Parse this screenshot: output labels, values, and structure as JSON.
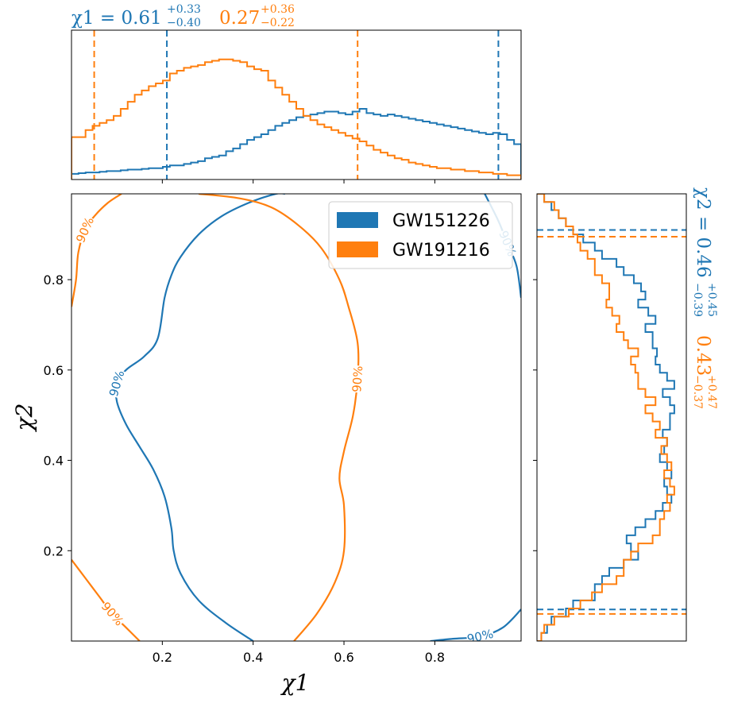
{
  "colors": {
    "blue": "#1f77b4",
    "orange": "#ff7f0e"
  },
  "labels": {
    "x_axis": "χ1",
    "y_axis": "χ2",
    "contour_label": "90%"
  },
  "legend": {
    "placement": "upper right",
    "items": [
      "GW151226",
      "GW191216"
    ]
  },
  "annotations": {
    "top": {
      "symbol": "χ1",
      "eq": "=",
      "blue": {
        "median": "0.61",
        "plus": "+0.33",
        "minus": "−0.40"
      },
      "orange": {
        "median": "0.27",
        "plus": "+0.36",
        "minus": "−0.22"
      }
    },
    "right": {
      "symbol": "χ2",
      "eq": "=",
      "blue": {
        "median": "0.46",
        "plus": "+0.45",
        "minus": "−0.39"
      },
      "orange": {
        "median": "0.43",
        "plus": "+0.47",
        "minus": "−0.37"
      }
    }
  },
  "chart_data": [
    {
      "type": "line",
      "panel": "joint 90% credible contours",
      "xlabel": "χ1",
      "ylabel": "χ2",
      "xlim": [
        0,
        0.99
      ],
      "ylim": [
        0,
        0.99
      ],
      "xticks": [
        "0.2",
        "0.4",
        "0.6",
        "0.8"
      ],
      "yticks": [
        "0.2",
        "0.4",
        "0.6",
        "0.8"
      ],
      "series": [
        {
          "name": "GW151226",
          "color": "#1f77b4",
          "contours": [
            [
              [
                0.4,
                0.0
              ],
              [
                0.34,
                0.04
              ],
              [
                0.28,
                0.09
              ],
              [
                0.24,
                0.15
              ],
              [
                0.225,
                0.2
              ],
              [
                0.22,
                0.25
              ],
              [
                0.205,
                0.32
              ],
              [
                0.18,
                0.38
              ],
              [
                0.15,
                0.43
              ],
              [
                0.12,
                0.48
              ],
              [
                0.1,
                0.53
              ],
              [
                0.1,
                0.57
              ],
              [
                0.12,
                0.6
              ],
              [
                0.16,
                0.63
              ],
              [
                0.19,
                0.67
              ],
              [
                0.205,
                0.76
              ],
              [
                0.22,
                0.81
              ],
              [
                0.24,
                0.85
              ],
              [
                0.28,
                0.9
              ],
              [
                0.33,
                0.94
              ],
              [
                0.39,
                0.97
              ],
              [
                0.45,
                0.99
              ],
              [
                0.47,
                0.99
              ]
            ],
            [
              [
                0.91,
                0.99
              ],
              [
                0.94,
                0.93
              ],
              [
                0.96,
                0.88
              ],
              [
                0.98,
                0.83
              ],
              [
                0.99,
                0.76
              ]
            ],
            [
              [
                0.79,
                0.0
              ],
              [
                0.84,
                0.005
              ],
              [
                0.9,
                0.01
              ],
              [
                0.95,
                0.03
              ],
              [
                0.99,
                0.07
              ]
            ]
          ],
          "marginal_x": [
            0.04,
            0.045,
            0.05,
            0.05,
            0.055,
            0.06,
            0.06,
            0.065,
            0.07,
            0.07,
            0.075,
            0.08,
            0.08,
            0.09,
            0.1,
            0.1,
            0.11,
            0.12,
            0.13,
            0.15,
            0.16,
            0.17,
            0.2,
            0.22,
            0.25,
            0.28,
            0.3,
            0.32,
            0.35,
            0.38,
            0.4,
            0.42,
            0.44,
            0.45,
            0.46,
            0.47,
            0.48,
            0.48,
            0.47,
            0.46,
            0.48,
            0.5,
            0.47,
            0.46,
            0.45,
            0.46,
            0.45,
            0.44,
            0.43,
            0.42,
            0.41,
            0.4,
            0.39,
            0.38,
            0.37,
            0.36,
            0.35,
            0.34,
            0.33,
            0.32,
            0.33,
            0.32,
            0.28,
            0.25
          ],
          "marginal_y": [
            0.03,
            0.07,
            0.1,
            0.2,
            0.25,
            0.4,
            0.4,
            0.45,
            0.5,
            0.6,
            0.7,
            0.65,
            0.62,
            0.68,
            0.75,
            0.82,
            0.87,
            0.93,
            0.9,
            0.88,
            0.93,
            0.9,
            0.85,
            0.88,
            0.9,
            0.87,
            0.92,
            0.92,
            0.95,
            0.92,
            0.87,
            0.95,
            0.9,
            0.85,
            0.82,
            0.83,
            0.8,
            0.8,
            0.75,
            0.82,
            0.77,
            0.7,
            0.75,
            0.72,
            0.67,
            0.6,
            0.55,
            0.45,
            0.4,
            0.32,
            0.25,
            0.2,
            0.15,
            0.1,
            0.05
          ],
          "interval_lines": {
            "x": [
              0.21,
              0.94
            ],
            "y": [
              0.07,
              0.91
            ]
          }
        },
        {
          "name": "GW191216",
          "color": "#ff7f0e",
          "contours": [
            [
              [
                0.49,
                0.0
              ],
              [
                0.54,
                0.06
              ],
              [
                0.58,
                0.13
              ],
              [
                0.6,
                0.2
              ],
              [
                0.6,
                0.3
              ],
              [
                0.59,
                0.36
              ],
              [
                0.6,
                0.42
              ],
              [
                0.62,
                0.5
              ],
              [
                0.63,
                0.58
              ],
              [
                0.63,
                0.66
              ],
              [
                0.61,
                0.74
              ],
              [
                0.59,
                0.8
              ],
              [
                0.55,
                0.87
              ],
              [
                0.5,
                0.92
              ],
              [
                0.44,
                0.96
              ],
              [
                0.37,
                0.98
              ],
              [
                0.28,
                0.99
              ]
            ],
            [
              [
                0.0,
                0.74
              ],
              [
                0.01,
                0.8
              ],
              [
                0.015,
                0.86
              ],
              [
                0.03,
                0.91
              ],
              [
                0.05,
                0.94
              ],
              [
                0.08,
                0.97
              ],
              [
                0.11,
                0.99
              ]
            ],
            [
              [
                0.0,
                0.18
              ],
              [
                0.03,
                0.14
              ],
              [
                0.06,
                0.1
              ],
              [
                0.09,
                0.06
              ],
              [
                0.12,
                0.03
              ],
              [
                0.15,
                0.0
              ]
            ]
          ],
          "marginal_x": [
            0.3,
            0.3,
            0.35,
            0.38,
            0.4,
            0.42,
            0.45,
            0.5,
            0.55,
            0.6,
            0.63,
            0.66,
            0.68,
            0.7,
            0.75,
            0.77,
            0.79,
            0.8,
            0.81,
            0.83,
            0.84,
            0.85,
            0.85,
            0.84,
            0.83,
            0.8,
            0.78,
            0.77,
            0.7,
            0.65,
            0.6,
            0.55,
            0.5,
            0.45,
            0.42,
            0.39,
            0.37,
            0.35,
            0.33,
            0.31,
            0.29,
            0.27,
            0.24,
            0.21,
            0.19,
            0.17,
            0.15,
            0.14,
            0.12,
            0.11,
            0.1,
            0.09,
            0.08,
            0.08,
            0.07,
            0.07,
            0.06,
            0.06,
            0.05,
            0.05,
            0.04,
            0.04,
            0.03,
            0.03
          ],
          "marginal_y": [
            0.03,
            0.05,
            0.12,
            0.22,
            0.3,
            0.38,
            0.45,
            0.55,
            0.6,
            0.6,
            0.65,
            0.7,
            0.8,
            0.85,
            0.85,
            0.88,
            0.92,
            0.9,
            0.95,
            0.92,
            0.88,
            0.93,
            0.9,
            0.86,
            0.9,
            0.82,
            0.85,
            0.8,
            0.75,
            0.82,
            0.75,
            0.7,
            0.7,
            0.68,
            0.65,
            0.7,
            0.63,
            0.6,
            0.55,
            0.57,
            0.52,
            0.48,
            0.5,
            0.5,
            0.45,
            0.4,
            0.4,
            0.35,
            0.3,
            0.28,
            0.25,
            0.2,
            0.15,
            0.12,
            0.05
          ],
          "interval_lines": {
            "x": [
              0.05,
              0.63
            ],
            "y": [
              0.06,
              0.895
            ]
          }
        }
      ]
    }
  ]
}
